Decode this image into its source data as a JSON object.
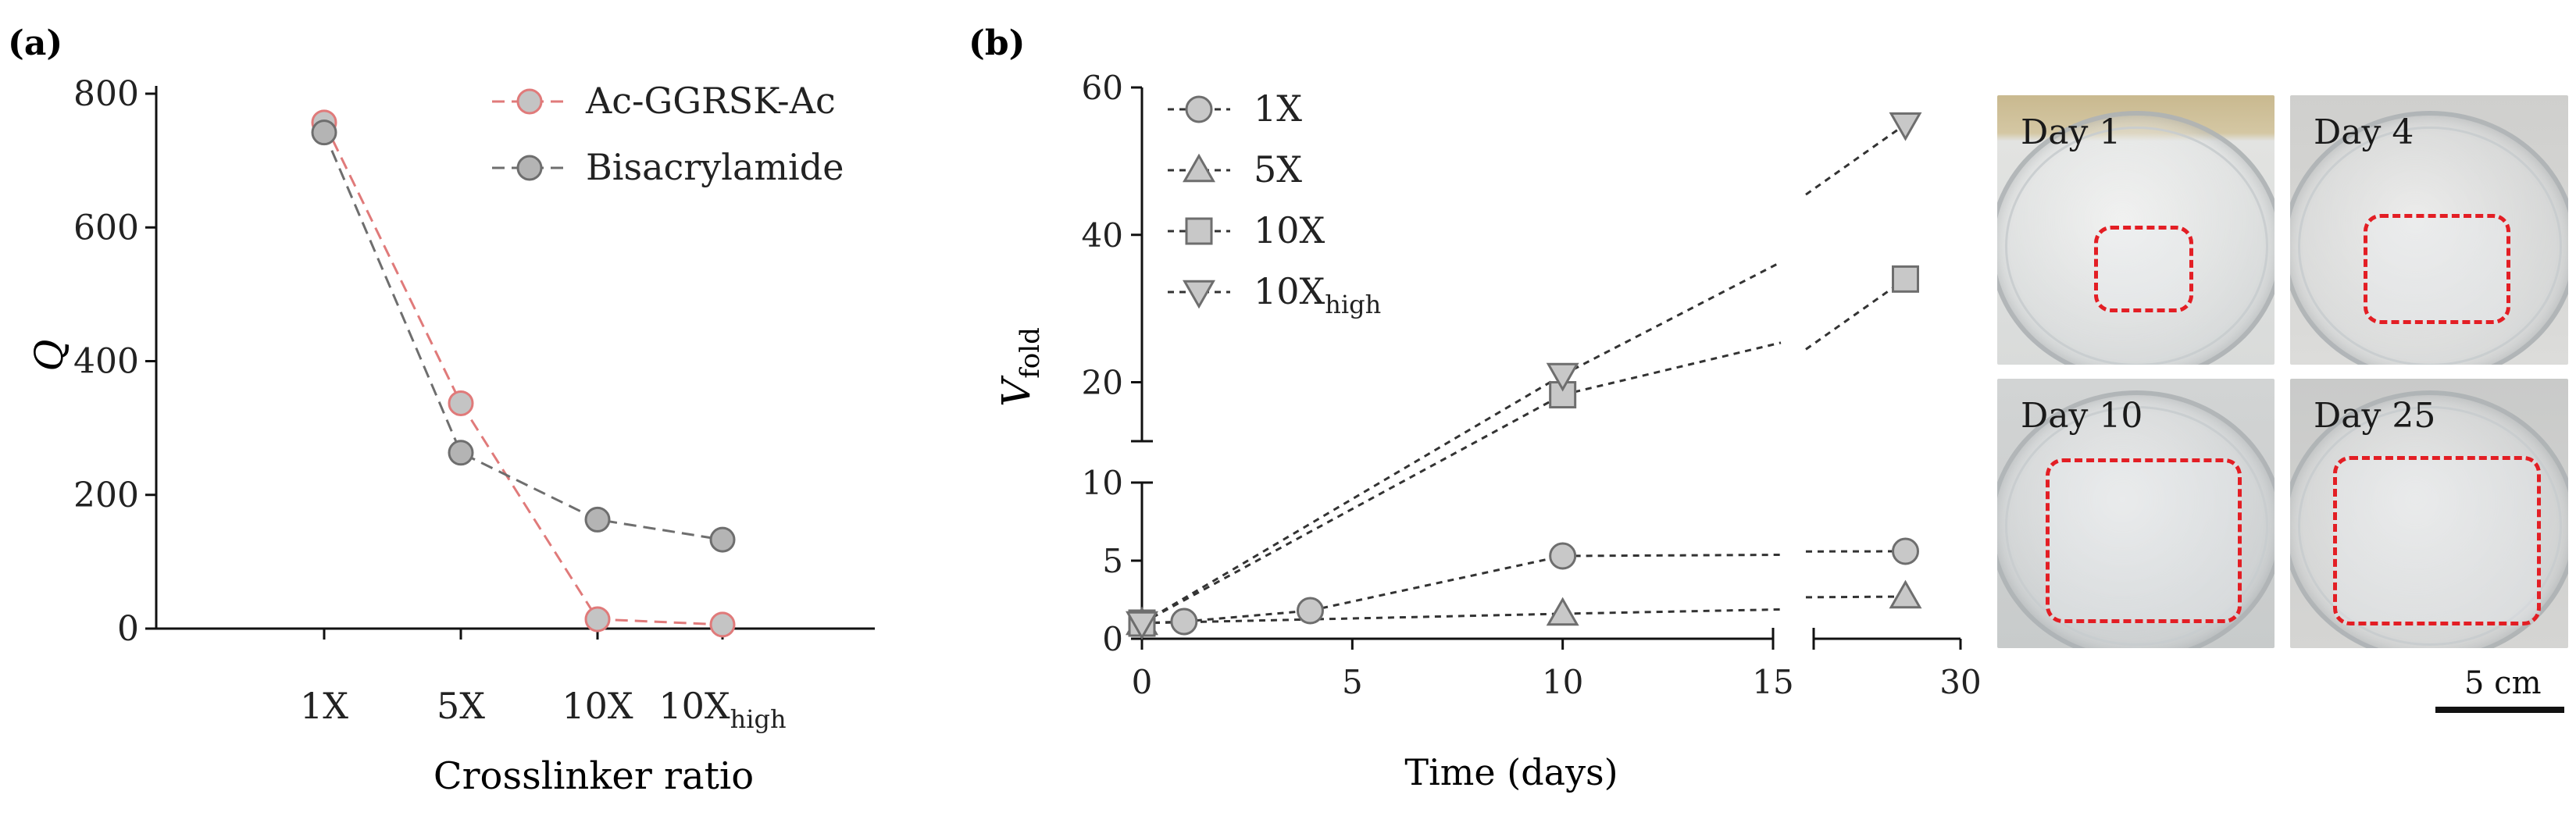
{
  "panel_a": {
    "label": "(a)",
    "chart_data": {
      "type": "line",
      "categories": [
        "1X",
        "5X",
        "10X",
        "10Xhigh"
      ],
      "category_display": [
        {
          "main": "1X",
          "sub": ""
        },
        {
          "main": "5X",
          "sub": ""
        },
        {
          "main": "10X",
          "sub": ""
        },
        {
          "main": "10X",
          "sub": "high"
        }
      ],
      "series": [
        {
          "name": "Ac-GGRSK-Ac",
          "values": [
            757,
            337,
            14,
            6
          ],
          "color": "#e07a7a",
          "marker_fill": "#c4c4c4"
        },
        {
          "name": "Bisacrylamide",
          "values": [
            742,
            263,
            163,
            133
          ],
          "color": "#6e6e6e",
          "marker_fill": "#b4b4b4"
        }
      ],
      "xlabel": "Crosslinker ratio",
      "ylabel": "Q",
      "ylim": [
        0,
        800
      ],
      "yticks": [
        0,
        200,
        400,
        600,
        800
      ],
      "legend": "top-right",
      "grid": false
    }
  },
  "panel_b": {
    "label": "(b)",
    "chart_data": {
      "type": "line",
      "series": [
        {
          "name": "1X",
          "name_sub": "",
          "marker": "circle",
          "points": [
            [
              0,
              1
            ],
            [
              1,
              1.1
            ],
            [
              4,
              1.8
            ],
            [
              10,
              5.3
            ],
            [
              28.5,
              5.6
            ]
          ]
        },
        {
          "name": "5X",
          "name_sub": "",
          "marker": "triangle-up",
          "points": [
            [
              0,
              1
            ],
            [
              10,
              1.6
            ],
            [
              28.5,
              2.7
            ]
          ]
        },
        {
          "name": "10X",
          "name_sub": "",
          "marker": "square",
          "points": [
            [
              0,
              1
            ],
            [
              10,
              18.3
            ],
            [
              28.5,
              34
            ]
          ]
        },
        {
          "name": "10X",
          "name_sub": "high",
          "marker": "triangle-down",
          "points": [
            [
              0,
              1
            ],
            [
              10,
              21
            ],
            [
              28.5,
              55
            ]
          ]
        }
      ],
      "xlabel": "Time (days)",
      "ylabel": "V",
      "ylabel_sub": "fold",
      "xlim": [
        0,
        30
      ],
      "xticks": [
        0,
        5,
        10,
        15,
        30
      ],
      "x_break": [
        15,
        26
      ],
      "y_lower_lim": [
        0,
        10
      ],
      "y_lower_ticks": [
        0,
        5,
        10
      ],
      "y_upper_lim": [
        12,
        60
      ],
      "y_upper_ticks": [
        20,
        40,
        60
      ],
      "legend": "top-left",
      "grid": false
    }
  },
  "photos": [
    {
      "label": "Day 1",
      "gel": {
        "w": 0.33,
        "h": 0.29
      }
    },
    {
      "label": "Day 4",
      "gel": {
        "w": 0.5,
        "h": 0.38
      }
    },
    {
      "label": "Day 10",
      "gel": {
        "w": 0.68,
        "h": 0.58
      }
    },
    {
      "label": "Day 25",
      "gel": {
        "w": 0.72,
        "h": 0.6
      }
    }
  ],
  "scale_bar": {
    "label": "5 cm"
  },
  "colors": {
    "marker_fill": "#c4c4c4",
    "marker_stroke": "#6e6e6e",
    "dashed_red": "#e31e24",
    "axis": "#111111"
  }
}
